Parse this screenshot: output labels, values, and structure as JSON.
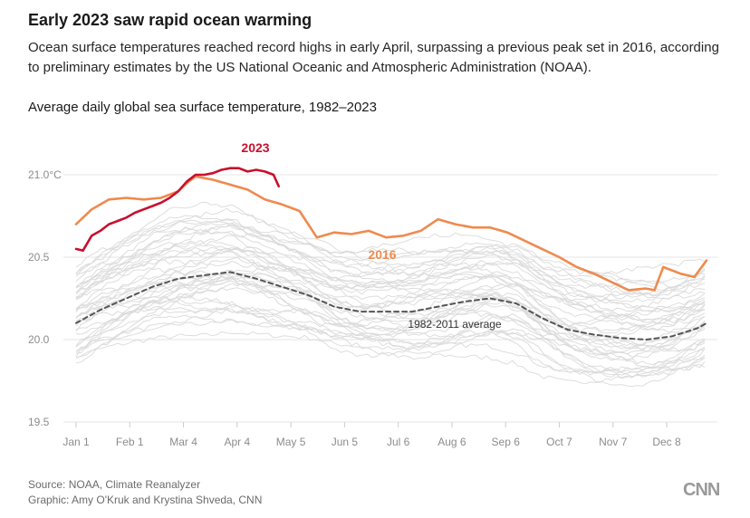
{
  "header": {
    "title": "Early 2023 saw rapid ocean warming",
    "subtitle": "Ocean surface temperatures reached record highs in early April, surpassing a previous peak set in 2016, according to preliminary estimates by the US National Oceanic and Atmospheric Administration (NOAA)."
  },
  "colors": {
    "series_2023": "#c8102e",
    "series_2016": "#ef8a4e",
    "average": "#555555",
    "background_years": "#d9d9d9",
    "grid": "#e6e6e6",
    "axis_text": "#8c8c8c"
  },
  "chart_data": {
    "type": "line",
    "title": "Average daily global sea surface temperature, 1982–2023",
    "xlabel": "",
    "ylabel": "",
    "x_unit": "day of year",
    "xlim": [
      1,
      365
    ],
    "ylim": [
      19.5,
      21.15
    ],
    "grid": true,
    "legend": "inline labels",
    "y_ticks": [
      {
        "value": 19.5,
        "label": "19.5"
      },
      {
        "value": 20.0,
        "label": "20.0"
      },
      {
        "value": 20.5,
        "label": "20.5"
      },
      {
        "value": 21.0,
        "label": "21.0°C"
      }
    ],
    "x_ticks": [
      {
        "day": 1,
        "label": "Jan 1"
      },
      {
        "day": 32,
        "label": "Feb 1"
      },
      {
        "day": 63,
        "label": "Mar 4"
      },
      {
        "day": 94,
        "label": "Apr 4"
      },
      {
        "day": 125,
        "label": "May 5"
      },
      {
        "day": 156,
        "label": "Jun 5"
      },
      {
        "day": 187,
        "label": "Jul 6"
      },
      {
        "day": 218,
        "label": "Aug 6"
      },
      {
        "day": 249,
        "label": "Sep 6"
      },
      {
        "day": 280,
        "label": "Oct 7"
      },
      {
        "day": 311,
        "label": "Nov 7"
      },
      {
        "day": 342,
        "label": "Dec 8"
      }
    ],
    "series": [
      {
        "name": "2023",
        "label": "2023",
        "x": [
          1,
          5,
          10,
          15,
          20,
          25,
          30,
          35,
          40,
          45,
          50,
          55,
          60,
          65,
          70,
          75,
          80,
          85,
          90,
          95,
          100,
          105,
          110,
          115,
          118
        ],
        "values": [
          20.55,
          20.54,
          20.63,
          20.66,
          20.7,
          20.72,
          20.74,
          20.77,
          20.79,
          20.81,
          20.83,
          20.86,
          20.9,
          20.96,
          21.0,
          21.0,
          21.01,
          21.03,
          21.04,
          21.04,
          21.02,
          21.03,
          21.02,
          21.0,
          20.93
        ]
      },
      {
        "name": "2016",
        "label": "2016",
        "x": [
          1,
          10,
          20,
          30,
          40,
          50,
          60,
          65,
          70,
          80,
          90,
          100,
          110,
          120,
          130,
          140,
          150,
          160,
          170,
          180,
          190,
          200,
          210,
          220,
          230,
          240,
          250,
          260,
          270,
          280,
          290,
          300,
          310,
          320,
          330,
          335,
          340,
          350,
          358,
          365
        ],
        "values": [
          20.7,
          20.79,
          20.85,
          20.86,
          20.85,
          20.86,
          20.9,
          20.95,
          20.99,
          20.97,
          20.94,
          20.91,
          20.85,
          20.82,
          20.78,
          20.62,
          20.65,
          20.64,
          20.66,
          20.62,
          20.63,
          20.66,
          20.73,
          20.7,
          20.68,
          20.68,
          20.65,
          20.6,
          20.55,
          20.5,
          20.44,
          20.4,
          20.35,
          20.3,
          20.31,
          20.3,
          20.44,
          20.4,
          20.38,
          20.48
        ]
      },
      {
        "name": "1982-2011 average",
        "label": "1982-2011 average",
        "x": [
          1,
          15,
          30,
          45,
          60,
          75,
          90,
          105,
          120,
          135,
          150,
          165,
          180,
          195,
          210,
          225,
          240,
          255,
          270,
          285,
          300,
          315,
          330,
          345,
          360,
          365
        ],
        "values": [
          20.1,
          20.18,
          20.25,
          20.32,
          20.37,
          20.39,
          20.41,
          20.37,
          20.32,
          20.27,
          20.2,
          20.17,
          20.17,
          20.17,
          20.2,
          20.23,
          20.25,
          20.22,
          20.13,
          20.06,
          20.03,
          20.01,
          20.0,
          20.02,
          20.07,
          20.1
        ]
      }
    ],
    "background_years_range": "1982–2022"
  },
  "footer": {
    "source": "Source: NOAA, Climate Reanalyzer",
    "credit": "Graphic: Amy O'Kruk and Krystina Shveda, CNN",
    "logo": "CNN"
  }
}
